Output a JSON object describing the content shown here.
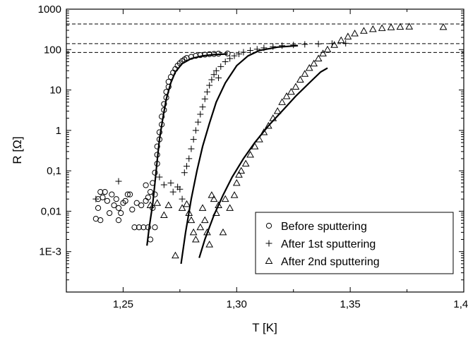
{
  "chart_data": {
    "type": "scatter",
    "title": "",
    "xlabel": "T [K]",
    "ylabel": "R [Ω]",
    "xlim": [
      1.225,
      1.4
    ],
    "ylim": [
      0.0001,
      1000
    ],
    "yscale": "log",
    "grid": false,
    "legend_position": "bottom-right",
    "x_ticks": [
      {
        "v": 1.25,
        "label": "1,25"
      },
      {
        "v": 1.3,
        "label": "1,30"
      },
      {
        "v": 1.35,
        "label": "1,35"
      },
      {
        "v": 1.4,
        "label": "1,40"
      }
    ],
    "y_ticks": [
      {
        "v": 0.001,
        "label": "1E-3"
      },
      {
        "v": 0.01,
        "label": "0,01"
      },
      {
        "v": 0.1,
        "label": "0,1"
      },
      {
        "v": 1,
        "label": "1"
      },
      {
        "v": 10,
        "label": "10"
      },
      {
        "v": 100,
        "label": "100"
      },
      {
        "v": 1000,
        "label": "1000"
      }
    ],
    "reference_lines": [
      {
        "y": 430,
        "style": "dashed"
      },
      {
        "y": 140,
        "style": "dashed"
      },
      {
        "y": 85,
        "style": "dashed"
      }
    ],
    "series": [
      {
        "name": "Before sputtering",
        "marker": "circle",
        "points": [
          [
            1.238,
            0.0065
          ],
          [
            1.239,
            0.012
          ],
          [
            1.239,
            0.02
          ],
          [
            1.24,
            0.03
          ],
          [
            1.24,
            0.006
          ],
          [
            1.241,
            0.022
          ],
          [
            1.242,
            0.03
          ],
          [
            1.243,
            0.018
          ],
          [
            1.244,
            0.009
          ],
          [
            1.245,
            0.026
          ],
          [
            1.246,
            0.014
          ],
          [
            1.247,
            0.02
          ],
          [
            1.248,
            0.006
          ],
          [
            1.248,
            0.012
          ],
          [
            1.249,
            0.009
          ],
          [
            1.25,
            0.016
          ],
          [
            1.251,
            0.018
          ],
          [
            1.252,
            0.026
          ],
          [
            1.253,
            0.026
          ],
          [
            1.254,
            0.011
          ],
          [
            1.255,
            0.004
          ],
          [
            1.256,
            0.016
          ],
          [
            1.257,
            0.004
          ],
          [
            1.258,
            0.014
          ],
          [
            1.259,
            0.004
          ],
          [
            1.26,
            0.018
          ],
          [
            1.26,
            0.044
          ],
          [
            1.261,
            0.022
          ],
          [
            1.261,
            0.004
          ],
          [
            1.262,
            0.002
          ],
          [
            1.262,
            0.03
          ],
          [
            1.263,
            0.012
          ],
          [
            1.263,
            0.05
          ],
          [
            1.264,
            0.004
          ],
          [
            1.264,
            0.026
          ],
          [
            1.264,
            0.09
          ],
          [
            1.265,
            0.15
          ],
          [
            1.265,
            0.25
          ],
          [
            1.265,
            0.4
          ],
          [
            1.266,
            0.6
          ],
          [
            1.266,
            0.9
          ],
          [
            1.267,
            1.4
          ],
          [
            1.267,
            2.2
          ],
          [
            1.268,
            3.2
          ],
          [
            1.268,
            4.5
          ],
          [
            1.269,
            6.5
          ],
          [
            1.269,
            9
          ],
          [
            1.27,
            12
          ],
          [
            1.27,
            16
          ],
          [
            1.271,
            21
          ],
          [
            1.272,
            27
          ],
          [
            1.273,
            33
          ],
          [
            1.274,
            40
          ],
          [
            1.275,
            46
          ],
          [
            1.276,
            52
          ],
          [
            1.277,
            57
          ],
          [
            1.278,
            62
          ],
          [
            1.28,
            66
          ],
          [
            1.282,
            70
          ],
          [
            1.284,
            73
          ],
          [
            1.286,
            75
          ],
          [
            1.288,
            77
          ],
          [
            1.29,
            78
          ],
          [
            1.292,
            79
          ],
          [
            1.296,
            80
          ]
        ]
      },
      {
        "name": "After 1st sputtering",
        "marker": "plus",
        "points": [
          [
            1.238,
            0.02
          ],
          [
            1.248,
            0.055
          ],
          [
            1.266,
            0.07
          ],
          [
            1.268,
            0.045
          ],
          [
            1.271,
            0.05
          ],
          [
            1.272,
            0.03
          ],
          [
            1.274,
            0.04
          ],
          [
            1.275,
            0.035
          ],
          [
            1.276,
            0.02
          ],
          [
            1.277,
            0.09
          ],
          [
            1.278,
            0.13
          ],
          [
            1.279,
            0.2
          ],
          [
            1.28,
            0.35
          ],
          [
            1.281,
            0.6
          ],
          [
            1.282,
            1.0
          ],
          [
            1.283,
            1.6
          ],
          [
            1.284,
            2.5
          ],
          [
            1.285,
            3.8
          ],
          [
            1.286,
            6
          ],
          [
            1.287,
            9
          ],
          [
            1.288,
            13
          ],
          [
            1.289,
            18
          ],
          [
            1.29,
            24
          ],
          [
            1.291,
            30
          ],
          [
            1.292,
            20
          ],
          [
            1.293,
            38
          ],
          [
            1.295,
            50
          ],
          [
            1.297,
            60
          ],
          [
            1.299,
            70
          ],
          [
            1.301,
            78
          ],
          [
            1.303,
            86
          ],
          [
            1.306,
            95
          ],
          [
            1.309,
            102
          ],
          [
            1.312,
            110
          ],
          [
            1.316,
            118
          ],
          [
            1.32,
            125
          ],
          [
            1.325,
            130
          ],
          [
            1.33,
            135
          ],
          [
            1.336,
            138
          ],
          [
            1.342,
            141
          ],
          [
            1.348,
            143
          ]
        ]
      },
      {
        "name": "After 2nd sputtering",
        "marker": "triangle",
        "points": [
          [
            1.262,
            0.014
          ],
          [
            1.265,
            0.016
          ],
          [
            1.268,
            0.008
          ],
          [
            1.27,
            0.014
          ],
          [
            1.273,
            0.0008
          ],
          [
            1.276,
            0.012
          ],
          [
            1.278,
            0.015
          ],
          [
            1.279,
            0.009
          ],
          [
            1.28,
            0.006
          ],
          [
            1.281,
            0.003
          ],
          [
            1.282,
            0.002
          ],
          [
            1.284,
            0.004
          ],
          [
            1.285,
            0.012
          ],
          [
            1.286,
            0.006
          ],
          [
            1.287,
            0.003
          ],
          [
            1.288,
            0.0015
          ],
          [
            1.289,
            0.025
          ],
          [
            1.29,
            0.02
          ],
          [
            1.291,
            0.009
          ],
          [
            1.292,
            0.014
          ],
          [
            1.294,
            0.003
          ],
          [
            1.295,
            0.02
          ],
          [
            1.297,
            0.012
          ],
          [
            1.299,
            0.025
          ],
          [
            1.3,
            0.05
          ],
          [
            1.301,
            0.08
          ],
          [
            1.302,
            0.1
          ],
          [
            1.304,
            0.15
          ],
          [
            1.306,
            0.25
          ],
          [
            1.308,
            0.4
          ],
          [
            1.31,
            0.6
          ],
          [
            1.312,
            0.9
          ],
          [
            1.314,
            1.3
          ],
          [
            1.316,
            2
          ],
          [
            1.318,
            3
          ],
          [
            1.32,
            5
          ],
          [
            1.322,
            7
          ],
          [
            1.324,
            9
          ],
          [
            1.326,
            12
          ],
          [
            1.328,
            18
          ],
          [
            1.33,
            25
          ],
          [
            1.332,
            35
          ],
          [
            1.334,
            45
          ],
          [
            1.336,
            60
          ],
          [
            1.338,
            80
          ],
          [
            1.34,
            100
          ],
          [
            1.343,
            130
          ],
          [
            1.346,
            170
          ],
          [
            1.349,
            210
          ],
          [
            1.352,
            250
          ],
          [
            1.356,
            290
          ],
          [
            1.36,
            320
          ],
          [
            1.364,
            340
          ],
          [
            1.368,
            355
          ],
          [
            1.372,
            365
          ],
          [
            1.376,
            370
          ],
          [
            1.391,
            360
          ]
        ]
      }
    ],
    "fits": [
      {
        "for": "Before sputtering",
        "points": [
          [
            1.2605,
            0.0014
          ],
          [
            1.2615,
            0.004
          ],
          [
            1.263,
            0.015
          ],
          [
            1.264,
            0.05
          ],
          [
            1.265,
            0.18
          ],
          [
            1.266,
            0.6
          ],
          [
            1.2675,
            2
          ],
          [
            1.269,
            6
          ],
          [
            1.271,
            15
          ],
          [
            1.273,
            28
          ],
          [
            1.276,
            45
          ],
          [
            1.28,
            60
          ],
          [
            1.285,
            70
          ],
          [
            1.29,
            75
          ],
          [
            1.296,
            78
          ]
        ]
      },
      {
        "for": "After 1st sputtering",
        "points": [
          [
            1.2755,
            0.0005
          ],
          [
            1.2775,
            0.003
          ],
          [
            1.28,
            0.02
          ],
          [
            1.2825,
            0.1
          ],
          [
            1.285,
            0.4
          ],
          [
            1.288,
            1.5
          ],
          [
            1.291,
            5
          ],
          [
            1.295,
            15
          ],
          [
            1.3,
            40
          ],
          [
            1.305,
            70
          ],
          [
            1.31,
            95
          ],
          [
            1.318,
            115
          ],
          [
            1.327,
            125
          ]
        ]
      },
      {
        "for": "After 2nd sputtering",
        "points": [
          [
            1.2835,
            0.0007
          ],
          [
            1.286,
            0.002
          ],
          [
            1.29,
            0.008
          ],
          [
            1.294,
            0.025
          ],
          [
            1.298,
            0.07
          ],
          [
            1.303,
            0.2
          ],
          [
            1.308,
            0.5
          ],
          [
            1.314,
            1.3
          ],
          [
            1.32,
            3
          ],
          [
            1.326,
            7
          ],
          [
            1.332,
            15
          ],
          [
            1.337,
            28
          ],
          [
            1.34,
            35
          ]
        ]
      }
    ]
  }
}
